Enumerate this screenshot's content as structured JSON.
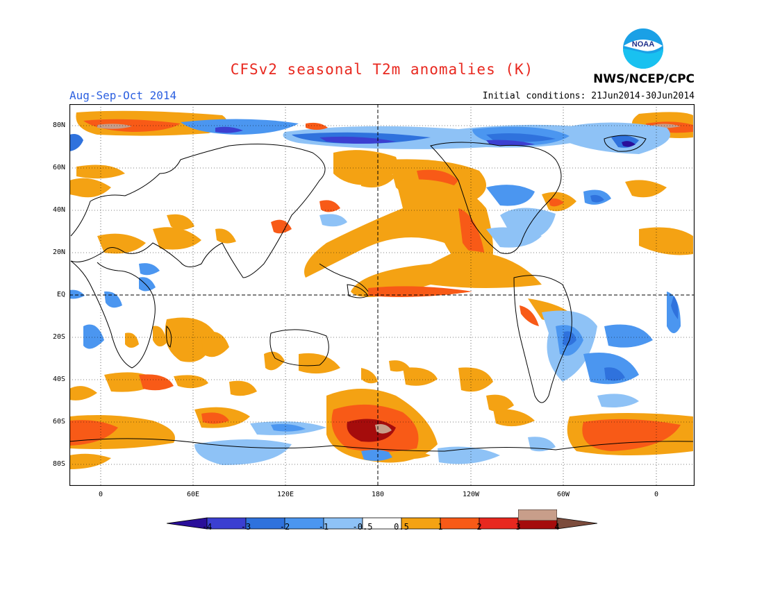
{
  "title": "CFSv2 seasonal T2m anomalies (K)",
  "season": "Aug-Sep-Oct 2014",
  "initial_conditions": "Initial conditions: 21Jun2014-30Jun2014",
  "agency": "NWS/NCEP/CPC",
  "logo_text": "NOAA",
  "lat_labels": [
    "80N",
    "60N",
    "40N",
    "20N",
    "EQ",
    "20S",
    "40S",
    "60S",
    "80S"
  ],
  "lon_labels": [
    "0",
    "60E",
    "120E",
    "180",
    "120W",
    "60W",
    "0"
  ],
  "colorbar_labels": [
    "-4",
    "-3",
    "-2",
    "-1",
    "-0.5",
    "0.5",
    "1",
    "2",
    "3",
    "4"
  ],
  "colors": {
    "neg4": "#2a0f9a",
    "neg3": "#3b3fd1",
    "neg2": "#2f72dd",
    "neg1": "#4b96f0",
    "neg05": "#8ec2f6",
    "neutral": "#ffffff",
    "pos05": "#f4a213",
    "pos1": "#f85a17",
    "pos2": "#e8281f",
    "pos3": "#a50c0c",
    "pos4": "#c89e8a",
    "pos4b": "#7c4c3c"
  }
}
